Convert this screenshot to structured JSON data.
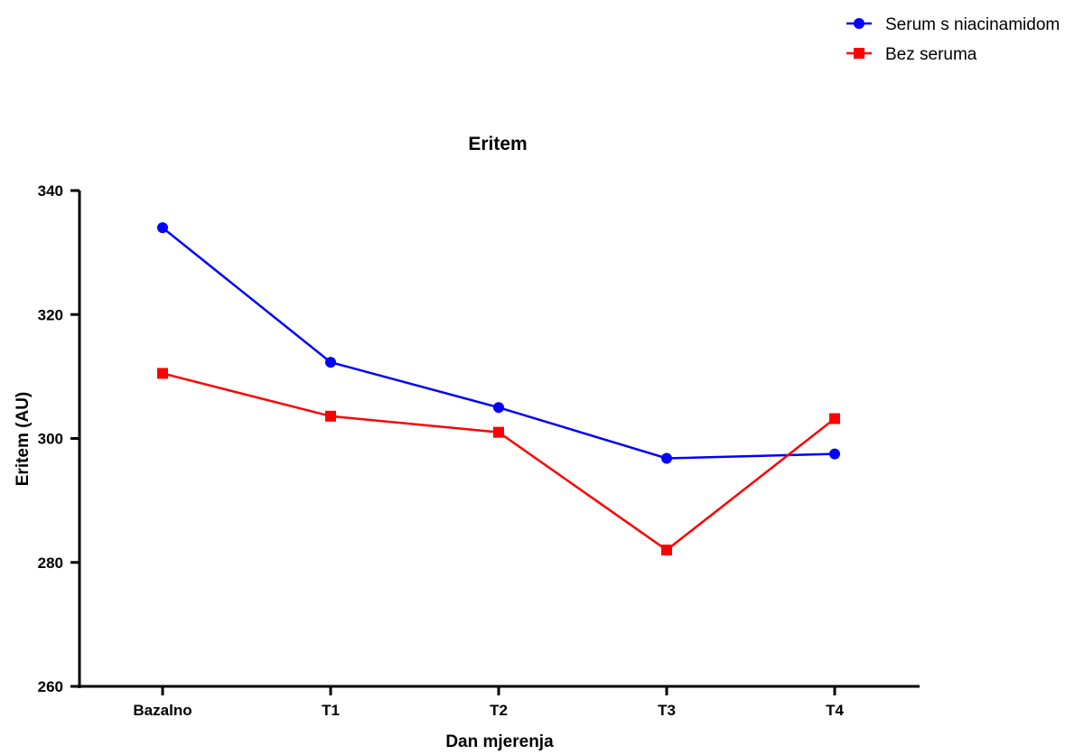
{
  "chart_data": {
    "type": "line",
    "title": "Eritem",
    "xlabel": "Dan mjerenja",
    "ylabel": "Eritem (AU)",
    "categories": [
      "Bazalno",
      "T1",
      "T2",
      "T3",
      "T4"
    ],
    "ylim": [
      260,
      340
    ],
    "yticks": [
      260,
      280,
      300,
      320,
      340
    ],
    "grid": false,
    "legend_position": "top-right",
    "series": [
      {
        "name": "Serum s niacinamidom",
        "color": "#0000ff",
        "marker": "circle",
        "values": [
          334,
          312.3,
          305,
          296.8,
          297.5
        ]
      },
      {
        "name": "Bez seruma",
        "color": "#ff0000",
        "marker": "square",
        "values": [
          310.5,
          303.6,
          301,
          282,
          303.2
        ]
      }
    ]
  }
}
